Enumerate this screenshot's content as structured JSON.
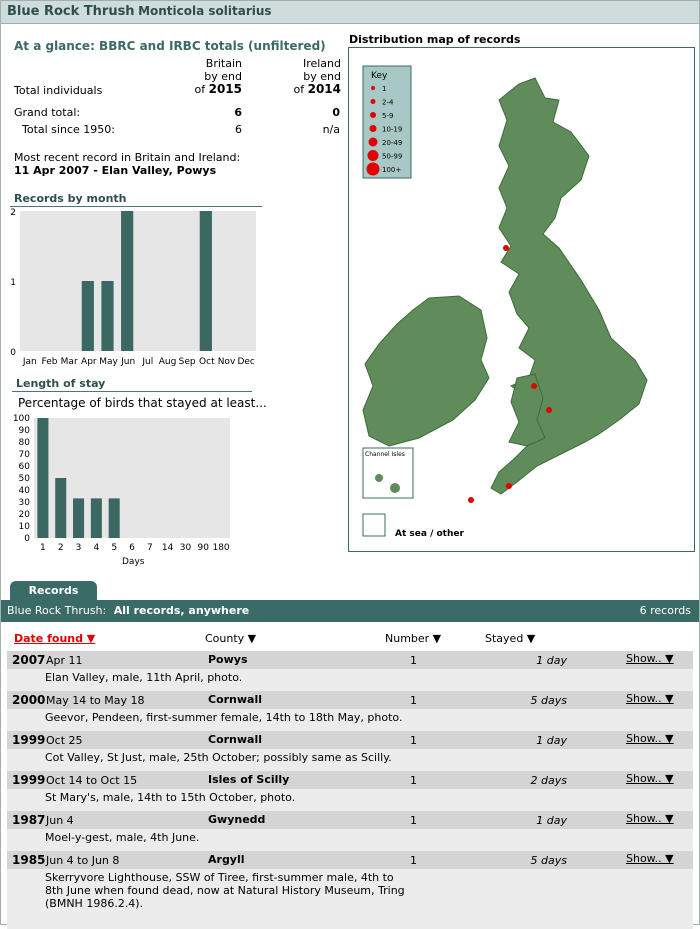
{
  "title": {
    "common": "Blue Rock Thrush",
    "scientific": "Monticola solitarius"
  },
  "glance": {
    "heading": "At a glance: BBRC and IRBC totals (unfiltered)",
    "britain_head": [
      "Britain",
      "by end",
      "of",
      "2015"
    ],
    "ireland_head": [
      "Ireland",
      "by end",
      "of",
      "2014"
    ],
    "total_individuals_label": "Total individuals",
    "grand_total_label": "Grand total:",
    "grand_total_britain": "6",
    "grand_total_ireland": "0",
    "since_1950_label": "Total since 1950:",
    "since_1950_britain": "6",
    "since_1950_ireland": "n/a",
    "recent_label": "Most recent record in Britain and Ireland:",
    "recent_value": "11 Apr 2007 - Elan Valley, Powys"
  },
  "month_chart": {
    "heading": "Records by month",
    "chart_data": {
      "type": "bar",
      "categories": [
        "Jan",
        "Feb",
        "Mar",
        "Apr",
        "May",
        "Jun",
        "Jul",
        "Aug",
        "Sep",
        "Oct",
        "Nov",
        "Dec"
      ],
      "values": [
        0,
        0,
        0,
        1,
        1,
        2,
        0,
        0,
        0,
        2,
        0,
        0
      ],
      "ylim": [
        0,
        2
      ],
      "yticks": [
        "0",
        "1",
        "2"
      ]
    }
  },
  "stay_chart": {
    "heading": "Length of stay",
    "subtitle": "Percentage of birds that stayed at least...",
    "xlabel": "Days",
    "chart_data": {
      "type": "bar",
      "categories": [
        "1",
        "2",
        "3",
        "4",
        "5",
        "6",
        "7",
        "14",
        "30",
        "90",
        "180"
      ],
      "values": [
        100,
        50,
        33,
        33,
        33,
        0,
        0,
        0,
        0,
        0,
        0
      ],
      "ylim": [
        0,
        100
      ],
      "yticks": [
        "0",
        "10",
        "20",
        "30",
        "40",
        "50",
        "60",
        "70",
        "80",
        "90",
        "100"
      ]
    }
  },
  "map": {
    "heading": "Distribution map of records",
    "key_title": "Key",
    "key_items": [
      "1",
      "2-4",
      "5-9",
      "10-19",
      "20-49",
      "50-99",
      "100+"
    ],
    "channel_isles": "Channel Isles",
    "at_sea": "At sea / other",
    "colors": {
      "land": "#5f8c5a",
      "dot": "#e00000"
    }
  },
  "records": {
    "tab_label": "Records",
    "bar_species": "Blue Rock Thrush:",
    "bar_scope": "All records, anywhere",
    "bar_count": "6 records",
    "col_date": "Date found ▼",
    "col_county": "County ▼",
    "col_number": "Number ▼",
    "col_stayed": "Stayed ▼",
    "show_label": "Show.. ▼",
    "rows": [
      {
        "year": "2007",
        "date": "Apr 11",
        "county": "Powys",
        "number": "1",
        "stayed": "1 day",
        "desc": "Elan Valley, male, 11th April, photo."
      },
      {
        "year": "2000",
        "date": "May 14 to May 18",
        "county": "Cornwall",
        "number": "1",
        "stayed": "5 days",
        "desc": "Geevor, Pendeen, first-summer female, 14th to 18th May, photo."
      },
      {
        "year": "1999",
        "date": "Oct 25",
        "county": "Cornwall",
        "number": "1",
        "stayed": "1 day",
        "desc": "Cot Valley, St Just, male, 25th October; possibly same as Scilly."
      },
      {
        "year": "1999",
        "date": "Oct 14 to Oct 15",
        "county": "Isles of Scilly",
        "number": "1",
        "stayed": "2 days",
        "desc": "St Mary's, male, 14th to 15th October, photo."
      },
      {
        "year": "1987",
        "date": "Jun 4",
        "county": "Gwynedd",
        "number": "1",
        "stayed": "1 day",
        "desc": "Moel-y-gest, male, 4th June."
      },
      {
        "year": "1985",
        "date": "Jun 4 to Jun 8",
        "county": "Argyll",
        "number": "1",
        "stayed": "5 days",
        "desc": "Skerryvore Lighthouse, SSW of Tiree, first-summer male, 4th to 8th June when found dead, now at Natural History Museum, Tring (BMNH 1986.2.4)."
      }
    ]
  }
}
